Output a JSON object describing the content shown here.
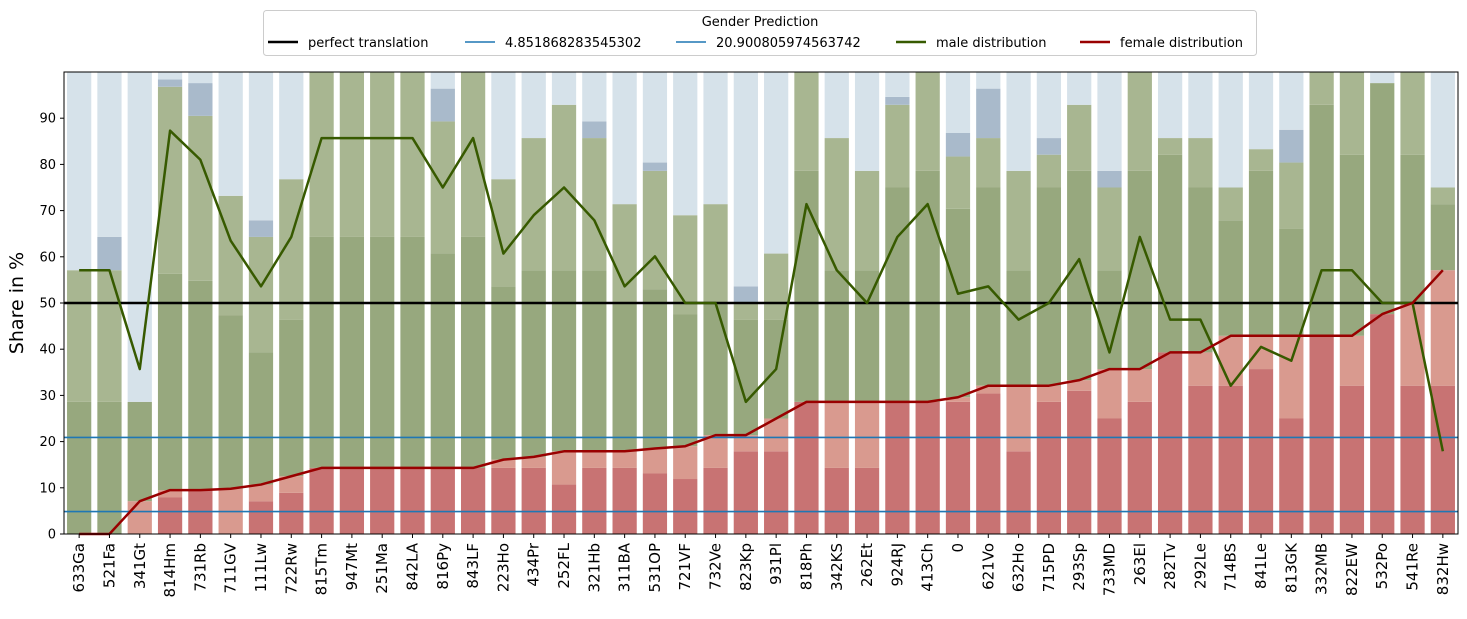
{
  "chart_data": {
    "type": "bar",
    "ylabel": "Share in %",
    "ylim": [
      0,
      100
    ],
    "yticks": [
      0,
      10,
      20,
      30,
      40,
      50,
      60,
      70,
      80,
      90
    ],
    "grid": false,
    "legend": {
      "title": "Gender Prediction",
      "placement": "top-center",
      "entries": [
        {
          "label": "perfect translation",
          "color": "#000000"
        },
        {
          "label": "4.851868283545302",
          "color": "#1f77b4"
        },
        {
          "label": "20.900805974563742",
          "color": "#1f77b4"
        },
        {
          "label": "male distribution",
          "color": "#375a00"
        },
        {
          "label": "female distribution",
          "color": "#990000"
        }
      ]
    },
    "colors": {
      "female_bar": "#c87373",
      "female_bar_light": "#d99a8f",
      "male_bar": "#97a87e",
      "male_bar_light": "#a8b691",
      "neutral_bar": "#a9bacb",
      "neutral_bar_light": "#d6e2ea",
      "male_line": "#375a00",
      "female_line": "#990000",
      "reference_line": "#000000",
      "hline": "#1f77b4"
    },
    "reference_lines": [
      {
        "name": "perfect translation",
        "y": 50
      },
      {
        "name": "4.851868283545302",
        "y": 4.851868283545302
      },
      {
        "name": "20.900805974563742",
        "y": 20.900805974563742
      }
    ],
    "categories": [
      "633Ga",
      "521Fa",
      "341Gt",
      "814Hm",
      "731Rb",
      "711GV",
      "111Lw",
      "722Rw",
      "815Tm",
      "947Mt",
      "251Ma",
      "842LA",
      "816Py",
      "843LF",
      "223Ho",
      "434Pr",
      "252FL",
      "321Hb",
      "311BA",
      "531OP",
      "721VF",
      "732Ve",
      "823Kp",
      "931Pl",
      "818Ph",
      "342KS",
      "262Et",
      "924RJ",
      "413Ch",
      "0",
      "621Vo",
      "632Ho",
      "715PD",
      "293Sp",
      "733MD",
      "263El",
      "282Tv",
      "292Le",
      "714BS",
      "841Le",
      "813GK",
      "332MB",
      "822EW",
      "532Po",
      "541Re",
      "832Hw"
    ],
    "series": [
      {
        "name": "male distribution",
        "values": [
          57.1,
          57.1,
          35.7,
          87.3,
          81.0,
          63.5,
          53.6,
          64.3,
          85.7,
          85.7,
          85.7,
          85.7,
          75.0,
          85.7,
          60.7,
          69.0,
          75.0,
          67.9,
          53.6,
          60.1,
          50.0,
          50.0,
          28.6,
          35.7,
          71.4,
          57.1,
          50.0,
          64.3,
          71.4,
          52.0,
          53.6,
          46.4,
          50.0,
          59.5,
          39.3,
          64.3,
          46.4,
          46.4,
          32.1,
          40.5,
          37.5,
          57.1,
          57.1,
          50.0,
          50.0,
          17.9
        ]
      },
      {
        "name": "female distribution",
        "values": [
          0,
          0,
          7.1,
          9.5,
          9.5,
          9.8,
          10.7,
          12.5,
          14.3,
          14.3,
          14.3,
          14.3,
          14.3,
          14.3,
          16.1,
          16.7,
          17.9,
          17.9,
          17.9,
          18.5,
          19.0,
          21.4,
          21.4,
          25.0,
          28.6,
          28.6,
          28.6,
          28.6,
          28.6,
          29.6,
          32.1,
          32.1,
          32.1,
          33.3,
          35.7,
          35.7,
          39.3,
          39.3,
          42.9,
          42.9,
          42.9,
          42.9,
          42.9,
          47.6,
          50.0,
          57.1
        ]
      }
    ],
    "stacked_bars": {
      "female_dark": [
        0,
        0,
        0,
        7.9,
        9.5,
        0,
        7.1,
        8.9,
        14.3,
        14.3,
        14.3,
        14.3,
        14.3,
        14.3,
        14.3,
        14.3,
        10.7,
        14.3,
        14.3,
        13.1,
        11.9,
        14.3,
        17.9,
        17.9,
        28.6,
        14.3,
        14.3,
        28.6,
        28.6,
        28.6,
        30.4,
        17.9,
        28.6,
        31.0,
        25.0,
        28.6,
        39.3,
        32.1,
        32.1,
        35.7,
        25.0,
        42.9,
        32.1,
        47.6,
        32.1,
        32.1
      ],
      "female_total": [
        0,
        0,
        7.1,
        9.5,
        9.5,
        9.8,
        10.7,
        12.5,
        14.3,
        14.3,
        14.3,
        14.3,
        14.3,
        14.3,
        16.1,
        16.7,
        17.9,
        17.9,
        17.9,
        18.5,
        19.0,
        21.4,
        21.4,
        25.0,
        28.6,
        28.6,
        28.6,
        28.6,
        28.6,
        29.6,
        32.1,
        32.1,
        32.1,
        33.3,
        35.7,
        35.7,
        39.3,
        39.3,
        42.9,
        42.9,
        42.9,
        42.9,
        42.9,
        47.6,
        50.0,
        57.1
      ],
      "male_dark_top": [
        28.6,
        28.6,
        28.6,
        56.3,
        54.8,
        47.3,
        39.3,
        46.4,
        64.3,
        64.3,
        64.3,
        64.3,
        60.7,
        64.3,
        53.6,
        57.1,
        57.1,
        57.1,
        50.0,
        53.0,
        47.6,
        50.0,
        46.4,
        46.4,
        78.6,
        57.1,
        57.1,
        75.0,
        78.6,
        70.4,
        75.0,
        57.1,
        75.0,
        78.6,
        57.1,
        78.6,
        82.1,
        75.0,
        67.9,
        78.6,
        66.1,
        92.9,
        82.1,
        97.6,
        82.1,
        71.4
      ],
      "male_total": [
        57.1,
        57.1,
        28.6,
        96.8,
        90.5,
        73.2,
        64.3,
        76.8,
        100,
        100,
        100,
        100,
        89.3,
        100,
        76.8,
        85.7,
        92.9,
        85.7,
        71.4,
        78.6,
        69.0,
        71.4,
        50.0,
        60.7,
        100,
        85.7,
        78.6,
        92.9,
        100,
        81.7,
        85.7,
        78.6,
        82.1,
        92.9,
        75.0,
        100,
        85.7,
        85.7,
        75.0,
        83.3,
        80.4,
        100,
        100,
        97.6,
        100,
        75.0
      ],
      "neutral_top": [
        57.1,
        64.3,
        28.6,
        98.4,
        97.6,
        73.2,
        67.9,
        76.8,
        100,
        100,
        100,
        100,
        96.4,
        100,
        76.8,
        85.7,
        92.9,
        89.3,
        71.4,
        80.4,
        69.0,
        71.4,
        53.6,
        60.7,
        100,
        85.7,
        78.6,
        94.6,
        100,
        86.8,
        96.4,
        78.6,
        85.7,
        92.9,
        78.6,
        100,
        85.7,
        85.7,
        75.0,
        83.3,
        87.5,
        100,
        100,
        97.6,
        100,
        75.0
      ]
    }
  }
}
